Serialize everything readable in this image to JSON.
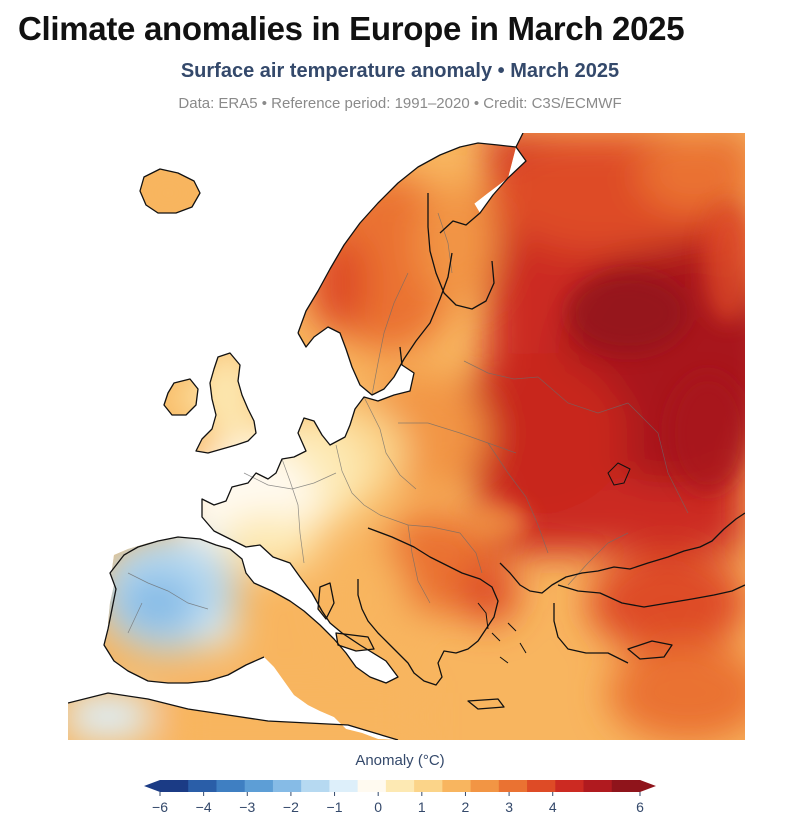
{
  "header": {
    "title": "Climate anomalies in Europe in March 2025",
    "subtitle": "Surface air temperature anomaly • March 2025",
    "credit": "Data: ERA5 • Reference period: 1991–2020 • Credit: C3S/ECMWF"
  },
  "legend": {
    "title": "Anomaly (°C)",
    "ticks": [
      "−6",
      "−4",
      "−3",
      "−2",
      "−1",
      "0",
      "1",
      "2",
      "3",
      "4",
      "6"
    ],
    "colors": [
      "#1b3b85",
      "#2a5ea8",
      "#3f7fc2",
      "#5d9ed6",
      "#86bbe6",
      "#b6d9f1",
      "#ddeffa",
      "#fffaf0",
      "#fde9b3",
      "#fbd489",
      "#f8b55f",
      "#f29544",
      "#ea7232",
      "#de4b26",
      "#cc2a22",
      "#b01a1f",
      "#8f141b"
    ],
    "extend_low_color": "#1b3b85",
    "extend_high_color": "#8f141b"
  },
  "map": {
    "ocean_color": "#ffffff",
    "border_color": "#6b6b6b",
    "coast_color": "#111111"
  }
}
